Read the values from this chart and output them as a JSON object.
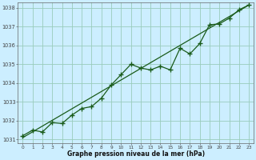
{
  "title": "Graphe pression niveau de la mer (hPa)",
  "background_color": "#cceeff",
  "grid_color": "#99ccbb",
  "line_color": "#1a5c1a",
  "marker_color": "#1a5c1a",
  "xlim": [
    -0.5,
    23.5
  ],
  "ylim": [
    1030.8,
    1038.3
  ],
  "yticks": [
    1031,
    1032,
    1033,
    1034,
    1035,
    1036,
    1037,
    1038
  ],
  "xticks": [
    0,
    1,
    2,
    3,
    4,
    5,
    6,
    7,
    8,
    9,
    10,
    11,
    12,
    13,
    14,
    15,
    16,
    17,
    18,
    19,
    20,
    21,
    22,
    23
  ],
  "xtick_labels": [
    "0",
    "1",
    "2",
    "3",
    "4",
    "5",
    "6",
    "7",
    "8",
    "9",
    "10",
    "11",
    "12",
    "13",
    "14",
    "15",
    "16",
    "17",
    "18",
    "19",
    "20",
    "21",
    "22",
    "23"
  ],
  "data_x": [
    0,
    1,
    2,
    3,
    4,
    5,
    6,
    7,
    8,
    9,
    10,
    11,
    12,
    13,
    14,
    15,
    16,
    17,
    18,
    19,
    20,
    21,
    22,
    23
  ],
  "data_y": [
    1031.2,
    1031.5,
    1031.4,
    1031.9,
    1031.85,
    1032.3,
    1032.65,
    1032.75,
    1033.2,
    1033.9,
    1034.45,
    1035.0,
    1034.8,
    1034.7,
    1034.9,
    1034.7,
    1035.85,
    1035.55,
    1036.1,
    1037.1,
    1037.15,
    1037.45,
    1037.9,
    1038.15
  ],
  "trend_x": [
    0,
    23
  ],
  "trend_y": [
    1031.1,
    1038.15
  ]
}
